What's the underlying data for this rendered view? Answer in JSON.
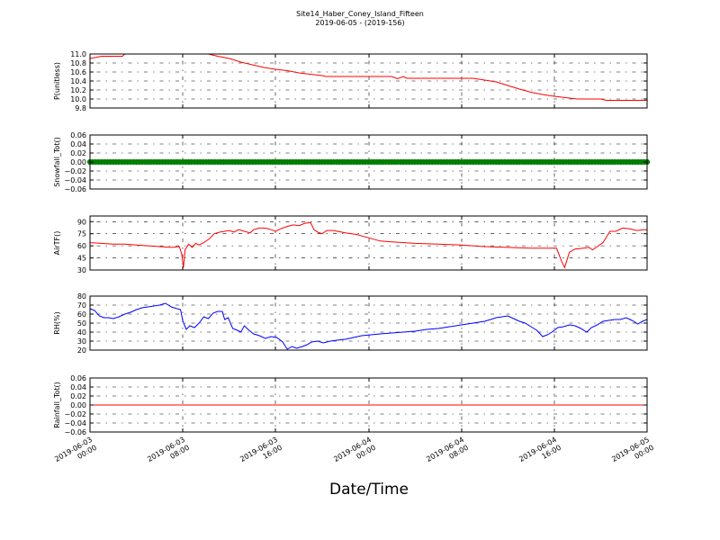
{
  "title_line1": "Site14_Haber_Coney_Island_Fifteen",
  "title_line2": "2019-06-05 - (2019-156)",
  "xlabel": "Date/Time",
  "x_ticks": [
    {
      "l1": "2019-06-03",
      "l2": "00:00"
    },
    {
      "l1": "2019-06-03",
      "l2": "08:00"
    },
    {
      "l1": "2019-06-03",
      "l2": "16:00"
    },
    {
      "l1": "2019-06-04",
      "l2": "00:00"
    },
    {
      "l1": "2019-06-04",
      "l2": "08:00"
    },
    {
      "l1": "2019-06-04",
      "l2": "16:00"
    },
    {
      "l1": "2019-06-05",
      "l2": "00:00"
    }
  ],
  "colors": {
    "red": "#ff0000",
    "green": "#007f00",
    "blue": "#0000ff",
    "grid": "#000000"
  },
  "chart_data": [
    {
      "type": "line",
      "ylabel": "P(unitless)",
      "ylim": [
        9.8,
        11.0
      ],
      "yticks": [
        "9.8",
        "10.0",
        "10.2",
        "10.4",
        "10.6",
        "10.8",
        "11.0"
      ],
      "x_unit": "hours since 2019-06-03 00:00",
      "xlim": [
        0,
        48
      ],
      "grid": true,
      "series": [
        {
          "color": "red",
          "points": [
            [
              0,
              10.9
            ],
            [
              1,
              10.95
            ],
            [
              2.8,
              10.95
            ],
            [
              3,
              11.0
            ],
            [
              10.2,
              11.0
            ],
            [
              11,
              10.95
            ],
            [
              12,
              10.9
            ],
            [
              13,
              10.82
            ],
            [
              14,
              10.76
            ],
            [
              15,
              10.7
            ],
            [
              16,
              10.66
            ],
            [
              17,
              10.63
            ],
            [
              18,
              10.58
            ],
            [
              19,
              10.55
            ],
            [
              20,
              10.52
            ],
            [
              20.3,
              10.5
            ],
            [
              23,
              10.5
            ],
            [
              25,
              10.5
            ],
            [
              26,
              10.5
            ],
            [
              26.5,
              10.45
            ],
            [
              27,
              10.5
            ],
            [
              27.3,
              10.46
            ],
            [
              29,
              10.46
            ],
            [
              33,
              10.46
            ],
            [
              34,
              10.42
            ],
            [
              35,
              10.38
            ],
            [
              36,
              10.3
            ],
            [
              37,
              10.22
            ],
            [
              38,
              10.15
            ],
            [
              39,
              10.1
            ],
            [
              40,
              10.06
            ],
            [
              41,
              10.03
            ],
            [
              42,
              10.0
            ],
            [
              44,
              10.0
            ],
            [
              44.5,
              9.97
            ],
            [
              46,
              9.97
            ],
            [
              48,
              9.97
            ]
          ]
        }
      ]
    },
    {
      "type": "scatter",
      "ylabel": "Snowfall_Tot()",
      "ylim": [
        -0.06,
        0.06
      ],
      "yticks": [
        "−0.06",
        "−0.04",
        "−0.02",
        "0.00",
        "0.02",
        "0.04",
        "0.06"
      ],
      "xlim": [
        0,
        48
      ],
      "grid": true,
      "series": [
        {
          "color": "green",
          "marker": "o",
          "constant_value": 0.0,
          "x_range": [
            0,
            48
          ],
          "step_hours": 0.25
        }
      ]
    },
    {
      "type": "line",
      "ylabel": "AirTF()",
      "ylim": [
        30,
        97
      ],
      "yticks": [
        "30",
        "45",
        "60",
        "75",
        "90"
      ],
      "xlim": [
        0,
        48
      ],
      "grid": true,
      "series": [
        {
          "color": "red",
          "points": [
            [
              0,
              64
            ],
            [
              1,
              63
            ],
            [
              2,
              62
            ],
            [
              3,
              62
            ],
            [
              4,
              61
            ],
            [
              5,
              60
            ],
            [
              6,
              59
            ],
            [
              7,
              58
            ],
            [
              7.7,
              59
            ],
            [
              7.9,
              50
            ],
            [
              8.05,
              33
            ],
            [
              8.2,
              55
            ],
            [
              8.5,
              62
            ],
            [
              8.8,
              58
            ],
            [
              9.1,
              63
            ],
            [
              9.4,
              61
            ],
            [
              9.8,
              64
            ],
            [
              10.3,
              69
            ],
            [
              10.7,
              75
            ],
            [
              11.2,
              77
            ],
            [
              12,
              79
            ],
            [
              12.4,
              77
            ],
            [
              12.8,
              80
            ],
            [
              13.3,
              78
            ],
            [
              13.8,
              76
            ],
            [
              14.1,
              80
            ],
            [
              14.6,
              82
            ],
            [
              15.1,
              82
            ],
            [
              15.6,
              80
            ],
            [
              16,
              78
            ],
            [
              16.4,
              81
            ],
            [
              17.0,
              84
            ],
            [
              17.5,
              86
            ],
            [
              18.0,
              85
            ],
            [
              18.5,
              88
            ],
            [
              19.0,
              89
            ],
            [
              19.3,
              80
            ],
            [
              19.6,
              77
            ],
            [
              20.0,
              75
            ],
            [
              20.4,
              79
            ],
            [
              21.0,
              79
            ],
            [
              22.0,
              76
            ],
            [
              23.0,
              74
            ],
            [
              24.0,
              70
            ],
            [
              25.0,
              66
            ],
            [
              26,
              65
            ],
            [
              28,
              63
            ],
            [
              30,
              62
            ],
            [
              32,
              61
            ],
            [
              34,
              59
            ],
            [
              36,
              58
            ],
            [
              38,
              57
            ],
            [
              39.5,
              57
            ],
            [
              40.2,
              57
            ],
            [
              40.6,
              42
            ],
            [
              40.9,
              33
            ],
            [
              41.3,
              52
            ],
            [
              41.8,
              56
            ],
            [
              42.5,
              57
            ],
            [
              43,
              58
            ],
            [
              43.3,
              55
            ],
            [
              43.8,
              60
            ],
            [
              44.2,
              64
            ],
            [
              44.8,
              78
            ],
            [
              45.3,
              78
            ],
            [
              45.9,
              82
            ],
            [
              46.5,
              81
            ],
            [
              47.1,
              79
            ],
            [
              47.7,
              80
            ],
            [
              48,
              80
            ]
          ]
        }
      ]
    },
    {
      "type": "line",
      "ylabel": "RH(%)",
      "ylim": [
        20,
        80
      ],
      "yticks": [
        "20",
        "30",
        "40",
        "50",
        "60",
        "70",
        "80"
      ],
      "xlim": [
        0,
        48
      ],
      "grid": true,
      "series": [
        {
          "color": "blue",
          "points": [
            [
              0,
              66
            ],
            [
              0.4,
              64
            ],
            [
              0.8,
              58
            ],
            [
              1.2,
              56
            ],
            [
              1.6,
              56
            ],
            [
              2,
              55
            ],
            [
              2.5,
              57
            ],
            [
              3,
              60
            ],
            [
              3.5,
              62
            ],
            [
              4,
              65
            ],
            [
              4.5,
              67
            ],
            [
              5,
              68
            ],
            [
              5.5,
              69
            ],
            [
              6,
              70
            ],
            [
              6.5,
              72
            ],
            [
              7,
              68
            ],
            [
              7.5,
              66
            ],
            [
              7.8,
              65
            ],
            [
              8.0,
              52
            ],
            [
              8.3,
              43
            ],
            [
              8.6,
              47
            ],
            [
              9.0,
              45
            ],
            [
              9.4,
              50
            ],
            [
              9.8,
              57
            ],
            [
              10.2,
              55
            ],
            [
              10.6,
              61
            ],
            [
              11.0,
              63
            ],
            [
              11.4,
              63
            ],
            [
              11.6,
              54
            ],
            [
              11.9,
              56
            ],
            [
              12.3,
              44
            ],
            [
              12.7,
              42
            ],
            [
              13.0,
              40
            ],
            [
              13.3,
              47
            ],
            [
              13.7,
              42
            ],
            [
              14.1,
              38
            ],
            [
              14.6,
              36
            ],
            [
              15.1,
              33
            ],
            [
              15.6,
              35
            ],
            [
              16.1,
              34
            ],
            [
              16.6,
              29
            ],
            [
              17.0,
              21
            ],
            [
              17.4,
              24
            ],
            [
              17.8,
              22
            ],
            [
              18.3,
              24
            ],
            [
              18.7,
              26
            ],
            [
              19.1,
              29
            ],
            [
              19.6,
              30
            ],
            [
              20.1,
              28
            ],
            [
              20.7,
              30
            ],
            [
              21.3,
              31
            ],
            [
              22.0,
              32
            ],
            [
              22.7,
              34
            ],
            [
              23.4,
              36
            ],
            [
              24.2,
              37
            ],
            [
              25.0,
              38
            ],
            [
              26,
              39
            ],
            [
              27,
              40
            ],
            [
              28,
              41
            ],
            [
              29,
              43
            ],
            [
              30,
              44
            ],
            [
              31,
              46
            ],
            [
              32,
              48
            ],
            [
              33,
              50
            ],
            [
              34,
              52
            ],
            [
              35,
              56
            ],
            [
              36,
              58
            ],
            [
              36.5,
              55
            ],
            [
              37,
              52
            ],
            [
              37.5,
              50
            ],
            [
              38,
              46
            ],
            [
              38.5,
              42
            ],
            [
              39,
              35
            ],
            [
              39.4,
              37
            ],
            [
              39.8,
              40
            ],
            [
              40.3,
              45
            ],
            [
              40.8,
              46
            ],
            [
              41.3,
              48
            ],
            [
              41.8,
              47
            ],
            [
              42.3,
              44
            ],
            [
              42.8,
              40
            ],
            [
              43.2,
              45
            ],
            [
              43.7,
              48
            ],
            [
              44.2,
              52
            ],
            [
              44.7,
              53
            ],
            [
              45.2,
              54
            ],
            [
              45.7,
              54
            ],
            [
              46.2,
              56
            ],
            [
              46.7,
              53
            ],
            [
              47.2,
              49
            ],
            [
              47.6,
              52
            ],
            [
              48,
              54
            ]
          ]
        }
      ]
    },
    {
      "type": "line",
      "ylabel": "Rainfall_Tot()",
      "ylim": [
        -0.06,
        0.06
      ],
      "yticks": [
        "−0.06",
        "−0.04",
        "−0.02",
        "0.00",
        "0.02",
        "0.04",
        "0.06"
      ],
      "xlim": [
        0,
        48
      ],
      "grid": true,
      "series": [
        {
          "color": "red",
          "points": [
            [
              0,
              0
            ],
            [
              48,
              0
            ]
          ]
        }
      ]
    }
  ]
}
